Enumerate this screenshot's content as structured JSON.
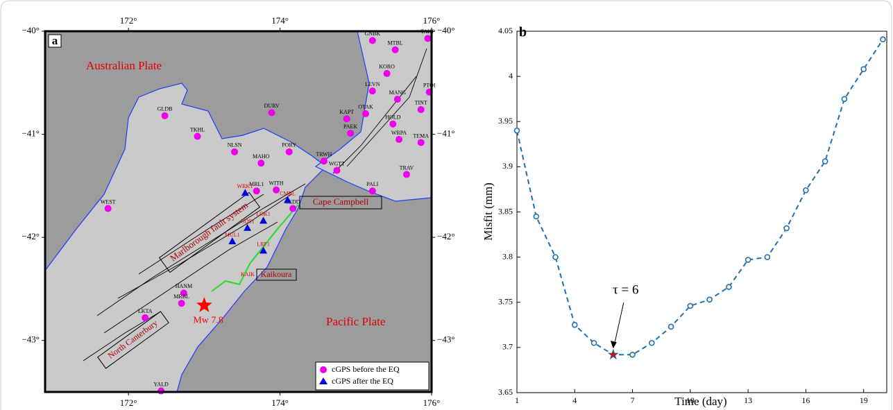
{
  "chart_data": [
    {
      "type": "map",
      "panel": "a",
      "xlim": [
        170.9,
        176
      ],
      "ylim": [
        -43.5,
        -40
      ],
      "xticks": [
        {
          "value": 172,
          "label": "172°"
        },
        {
          "value": 174,
          "label": "174°"
        },
        {
          "value": 176,
          "label": "176°"
        }
      ],
      "yticks": [
        {
          "value": -40,
          "label": "−40°"
        },
        {
          "value": -41,
          "label": "−41°"
        },
        {
          "value": -42,
          "label": "−42°"
        },
        {
          "value": -43,
          "label": "−43°"
        }
      ],
      "series": [
        {
          "name": "cGPS before the EQ",
          "color": "#ee00ee",
          "marker": "circle",
          "label_color": "#000000",
          "labels": [
            "GNBK",
            "MTBL",
            "TAKP",
            "KORO",
            "LEVN",
            "MANG",
            "PTOI",
            "DURV",
            "GLDB",
            "KAPT",
            "OTAK",
            "TINT",
            "HOLD",
            "TKHL",
            "PAEK",
            "WRPA",
            "TEMA",
            "NLSN",
            "MAHO",
            "PORY",
            "TRWH",
            "WGTT",
            "TRAV",
            "PALI",
            "MRL1",
            "WITH",
            "SEDD",
            "WEST",
            "HANM",
            "MRBL",
            "LKTA",
            "YALD"
          ],
          "x": [
            175.22,
            175.52,
            175.95,
            175.41,
            175.22,
            175.55,
            175.97,
            173.89,
            172.48,
            174.88,
            175.13,
            175.86,
            175.49,
            172.91,
            174.93,
            175.57,
            175.86,
            173.4,
            173.75,
            174.12,
            174.58,
            174.75,
            175.67,
            175.22,
            173.69,
            173.95,
            174.17,
            171.73,
            172.73,
            172.7,
            172.22,
            172.43
          ],
          "y": [
            -40.09,
            -40.18,
            -40.07,
            -40.41,
            -40.58,
            -40.66,
            -40.59,
            -40.79,
            -40.82,
            -40.85,
            -40.8,
            -40.76,
            -40.9,
            -41.02,
            -40.99,
            -41.05,
            -41.08,
            -41.17,
            -41.28,
            -41.17,
            -41.26,
            -41.35,
            -41.39,
            -41.55,
            -41.55,
            -41.54,
            -41.72,
            -41.72,
            -42.54,
            -42.64,
            -42.78,
            -43.49
          ]
        },
        {
          "name": "cGPS after the EQ",
          "color": "#0000dd",
          "marker": "triangle",
          "label_color": "#e00000",
          "labels": [
            "WRKT",
            "CMBL",
            "LOK1",
            "GDS1",
            "MUL1",
            "LRF1"
          ],
          "x": [
            173.54,
            174.1,
            173.78,
            173.57,
            173.37,
            173.78
          ],
          "y": [
            -41.57,
            -41.64,
            -41.84,
            -41.91,
            -42.04,
            -42.13
          ]
        }
      ],
      "epicenter": {
        "label": "Mw 7.8",
        "x": 173.0,
        "y": -42.66,
        "color": "#ff0000"
      },
      "annotations": [
        "Australian Plate",
        "Pacific Plate",
        "Marlborough fault system",
        "Cape Campbell",
        "Kaikoura",
        "North Canterbury",
        "KAIK"
      ]
    },
    {
      "type": "line",
      "panel": "b",
      "x": [
        1,
        2,
        3,
        4,
        5,
        6,
        7,
        8,
        9,
        10,
        11,
        12,
        13,
        14,
        15,
        16,
        17,
        18,
        19,
        20
      ],
      "values": [
        3.94,
        3.845,
        3.8,
        3.725,
        3.705,
        3.692,
        3.692,
        3.705,
        3.723,
        3.746,
        3.753,
        3.767,
        3.797,
        3.8,
        3.832,
        3.874,
        3.906,
        3.975,
        4.008,
        4.041
      ],
      "color": "#1f6fb0",
      "highlight_color": "#e00000",
      "xlim": [
        1,
        20.2
      ],
      "ylim": [
        3.65,
        4.05
      ],
      "xticks": [
        1,
        4,
        7,
        10,
        13,
        16,
        19
      ],
      "yticks": [
        3.65,
        3.7,
        3.75,
        3.8,
        3.85,
        3.9,
        3.95,
        4,
        4.05
      ],
      "xlabel": "Time (day)",
      "ylabel": "Misfit (mm)",
      "annotation": {
        "text": "τ = 6",
        "x": 6
      }
    }
  ]
}
